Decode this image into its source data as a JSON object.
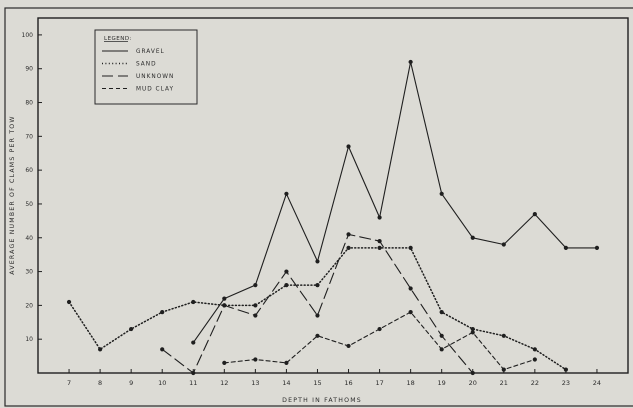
{
  "chart_data": {
    "type": "line",
    "title": "",
    "xlabel": "DEPTH IN FATHOMS",
    "ylabel": "AVERAGE NUMBER OF CLAMS PER TOW",
    "x": [
      7,
      8,
      9,
      10,
      11,
      12,
      13,
      14,
      15,
      16,
      17,
      18,
      19,
      20,
      21,
      22,
      23,
      24
    ],
    "xlim": [
      6,
      25
    ],
    "ylim": [
      0,
      105
    ],
    "yticks": [
      10,
      20,
      30,
      40,
      50,
      60,
      70,
      80,
      90,
      100
    ],
    "grid": false,
    "legend": {
      "title": "LEGEND:",
      "placement": "top-left"
    },
    "series": [
      {
        "name": "GRAVEL",
        "style": "solid",
        "points": [
          [
            11,
            9
          ],
          [
            12,
            22
          ],
          [
            13,
            26
          ],
          [
            14,
            53
          ],
          [
            15,
            33
          ],
          [
            16,
            67
          ],
          [
            17,
            46
          ],
          [
            18,
            92
          ],
          [
            19,
            53
          ],
          [
            20,
            40
          ],
          [
            21,
            38
          ],
          [
            22,
            47
          ],
          [
            23,
            37
          ],
          [
            24,
            37
          ]
        ]
      },
      {
        "name": "SAND",
        "style": "dotted",
        "points": [
          [
            7,
            21
          ],
          [
            8,
            7
          ],
          [
            9,
            13
          ],
          [
            10,
            18
          ],
          [
            11,
            21
          ],
          [
            12,
            20
          ],
          [
            13,
            20
          ],
          [
            14,
            26
          ],
          [
            15,
            26
          ],
          [
            16,
            37
          ],
          [
            17,
            37
          ],
          [
            18,
            37
          ],
          [
            19,
            18
          ],
          [
            20,
            13
          ],
          [
            21,
            11
          ],
          [
            22,
            7
          ],
          [
            23,
            1
          ]
        ]
      },
      {
        "name": "UNKNOWN",
        "style": "long-dash",
        "points": [
          [
            10,
            7
          ],
          [
            11,
            0
          ],
          [
            12,
            20
          ],
          [
            13,
            17
          ],
          [
            14,
            30
          ],
          [
            15,
            17
          ],
          [
            16,
            41
          ],
          [
            17,
            39
          ],
          [
            18,
            25
          ],
          [
            19,
            11
          ],
          [
            20,
            0
          ]
        ]
      },
      {
        "name": "MUD CLAY",
        "style": "short-dash",
        "points": [
          [
            12,
            3
          ],
          [
            13,
            4
          ],
          [
            14,
            3
          ],
          [
            15,
            11
          ],
          [
            16,
            8
          ],
          [
            17,
            13
          ],
          [
            18,
            18
          ],
          [
            19,
            7
          ],
          [
            20,
            12
          ],
          [
            21,
            1
          ],
          [
            22,
            4
          ]
        ]
      }
    ]
  }
}
